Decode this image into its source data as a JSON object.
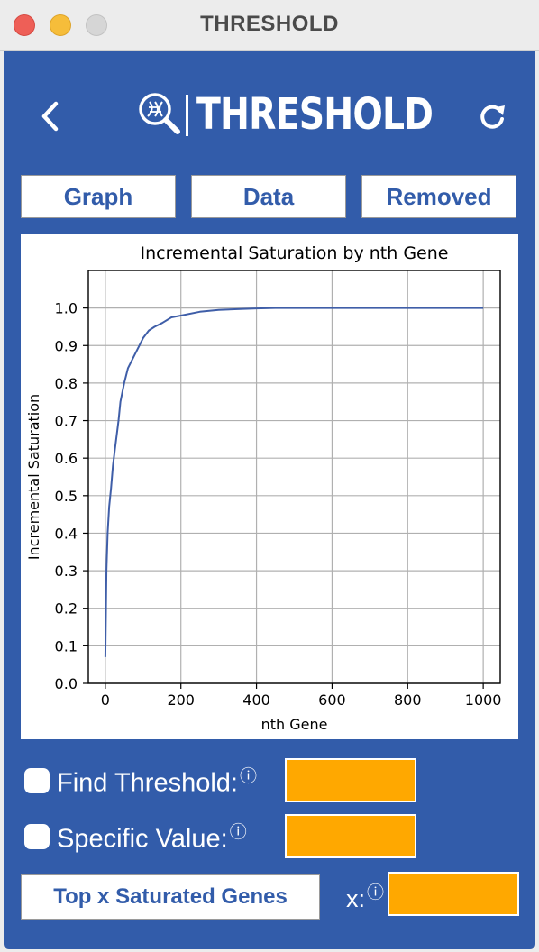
{
  "window": {
    "title": "THRESHOLD"
  },
  "header": {
    "logo_text": "THRESHOLD"
  },
  "tabs": [
    {
      "label": "Graph"
    },
    {
      "label": "Data"
    },
    {
      "label": "Removed"
    }
  ],
  "chart_data": {
    "type": "line",
    "title": "Incremental Saturation by nth Gene",
    "xlabel": "nth Gene",
    "ylabel": "Incremental Saturation",
    "xlim": [
      -45,
      1045
    ],
    "ylim": [
      0.0,
      1.1
    ],
    "xticks": [
      0,
      200,
      400,
      600,
      800,
      1000
    ],
    "yticks": [
      0.0,
      0.1,
      0.2,
      0.3,
      0.4,
      0.5,
      0.6,
      0.7,
      0.8,
      0.9,
      1.0
    ],
    "grid": true,
    "line_color": "#3f5ea8",
    "series": [
      {
        "x": [
          0,
          3,
          6,
          10,
          15,
          20,
          25,
          30,
          35,
          40,
          50,
          60,
          70,
          80,
          90,
          100,
          115,
          130,
          150,
          175,
          200,
          250,
          300,
          350,
          400,
          450,
          500,
          600,
          700,
          800,
          900,
          1000
        ],
        "values": [
          0.07,
          0.3,
          0.4,
          0.47,
          0.52,
          0.58,
          0.62,
          0.66,
          0.7,
          0.75,
          0.8,
          0.84,
          0.86,
          0.88,
          0.9,
          0.92,
          0.94,
          0.95,
          0.96,
          0.975,
          0.98,
          0.99,
          0.995,
          0.997,
          0.999,
          1.0,
          1.0,
          1.0,
          1.0,
          1.0,
          1.0,
          1.0
        ]
      }
    ]
  },
  "controls": {
    "find_threshold_label": "Find Threshold:",
    "specific_value_label": "Specific Value:",
    "info_glyph": "ⓘ",
    "top_button_label": "Top x Saturated Genes",
    "x_label": "x:",
    "find_threshold_value": "",
    "specific_value_value": "",
    "x_value": ""
  }
}
